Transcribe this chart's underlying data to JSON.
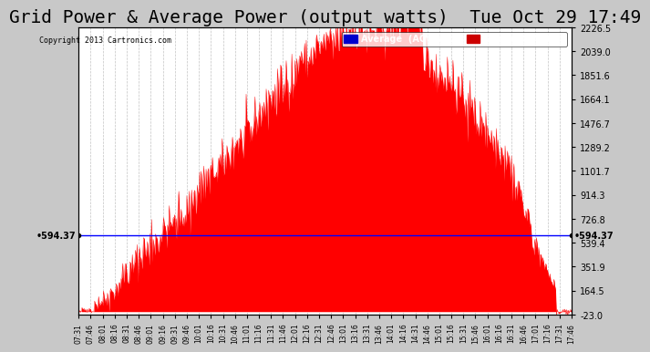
{
  "title": "Grid Power & Average Power (output watts)  Tue Oct 29 17:49",
  "copyright": "Copyright 2013 Cartronics.com",
  "ylabel_right_values": [
    2226.5,
    2039.0,
    1851.6,
    1664.1,
    1476.7,
    1289.2,
    1101.7,
    914.3,
    726.8,
    539.4,
    351.9,
    164.5,
    -23.0
  ],
  "ymin": -23.0,
  "ymax": 2226.5,
  "average_line_y": 594.37,
  "average_label": "594.37",
  "background_color": "#c8c8c8",
  "plot_bg_color": "#ffffff",
  "bar_color": "#ff0000",
  "avg_line_color": "#0000ff",
  "grid_color": "#aaaaaa",
  "title_fontsize": 14,
  "legend_avg_bg": "#0000cc",
  "legend_grid_bg": "#cc0000",
  "legend_text_color": "#ffffff"
}
